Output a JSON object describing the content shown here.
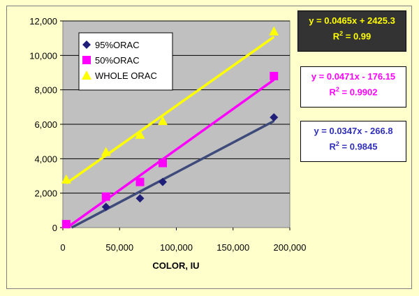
{
  "chart_data": {
    "type": "scatter",
    "xlabel": "COLOR, IU",
    "ylabel": "",
    "xlim": [
      0,
      200000
    ],
    "ylim": [
      0,
      12000
    ],
    "x_ticks": [
      "0",
      "50,000",
      "100,000",
      "150,000",
      "200,000"
    ],
    "y_ticks": [
      "0",
      "2,000",
      "4,000",
      "6,000",
      "8,000",
      "10,000",
      "12,000"
    ],
    "grid": "horizontal",
    "legend_position": "top-left",
    "series": [
      {
        "name": "95%ORAC",
        "marker": "diamond",
        "color": "#1F1F7A",
        "line_color": "#3D4A7A",
        "x": [
          3000,
          38000,
          68000,
          88000,
          186000
        ],
        "y": [
          200,
          1200,
          1700,
          2650,
          6400
        ],
        "trendline": {
          "slope": 0.0347,
          "intercept": -266.8
        },
        "trend_range": [
          7700,
          186000
        ]
      },
      {
        "name": "50%ORAC",
        "marker": "square",
        "color": "#FF00FF",
        "line_color": "#FF00FF",
        "x": [
          3000,
          38000,
          68000,
          88000,
          186000
        ],
        "y": [
          200,
          1800,
          2650,
          3750,
          8800
        ],
        "trendline": {
          "slope": 0.0471,
          "intercept": -176.15
        },
        "trend_range": [
          3700,
          186000
        ]
      },
      {
        "name": "WHOLE ORAC",
        "marker": "triangle",
        "color": "#FFFF00",
        "line_color": "#FFFF00",
        "x": [
          3000,
          38000,
          68000,
          88000,
          186000
        ],
        "y": [
          2800,
          4400,
          5400,
          6200,
          11400
        ],
        "trendline": {
          "slope": 0.0465,
          "intercept": 2425.3
        },
        "trend_range": [
          3000,
          186000
        ]
      }
    ],
    "equations": [
      {
        "equation": "y = 0.0465x + 2425.3",
        "r2": "0.99",
        "text_color": "#FFFF00",
        "bg_color": "#333333"
      },
      {
        "equation": "y = 0.0471x - 176.15",
        "r2": "0.9902",
        "text_color": "#FF00FF",
        "bg_color": "#FFFFFF"
      },
      {
        "equation": "y = 0.0347x - 266.8",
        "r2": "0.9845",
        "text_color": "#2E2EB8",
        "bg_color": "#FFFFFF"
      }
    ]
  }
}
